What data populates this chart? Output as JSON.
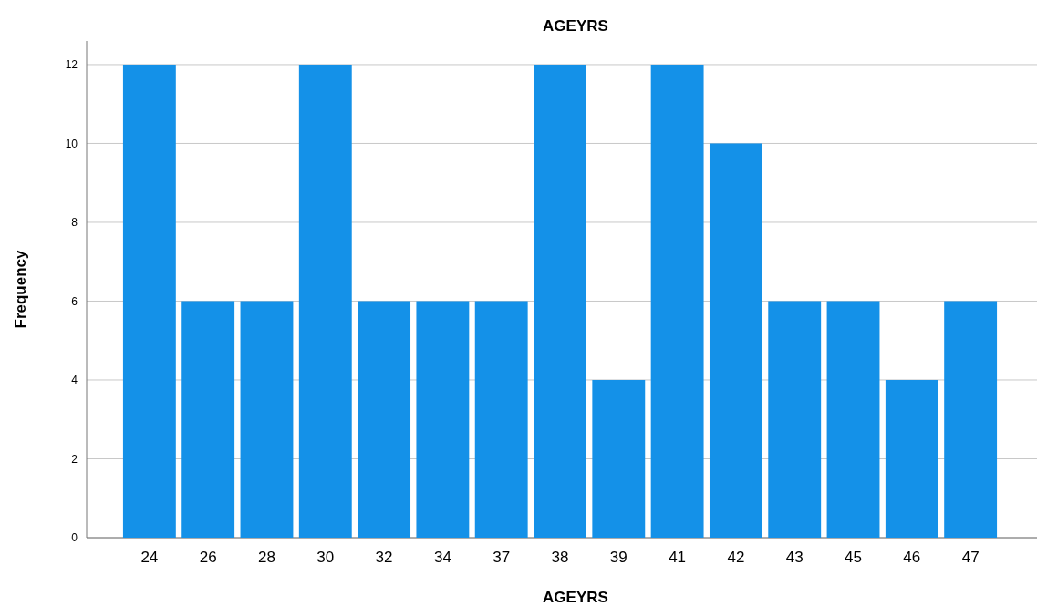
{
  "chart_data": {
    "type": "bar",
    "title": "AGEYRS",
    "xlabel": "AGEYRS",
    "ylabel": "Frequency",
    "categories": [
      "24",
      "26",
      "28",
      "30",
      "32",
      "34",
      "37",
      "38",
      "39",
      "41",
      "42",
      "43",
      "45",
      "46",
      "47"
    ],
    "values": [
      12,
      6,
      6,
      12,
      6,
      6,
      6,
      12,
      4,
      12,
      10,
      6,
      6,
      4,
      6
    ],
    "color": "#1491e8",
    "ylim": [
      0,
      12.6
    ],
    "yticks": [
      0,
      2,
      4,
      6,
      8,
      10,
      12
    ],
    "grid": "y"
  }
}
